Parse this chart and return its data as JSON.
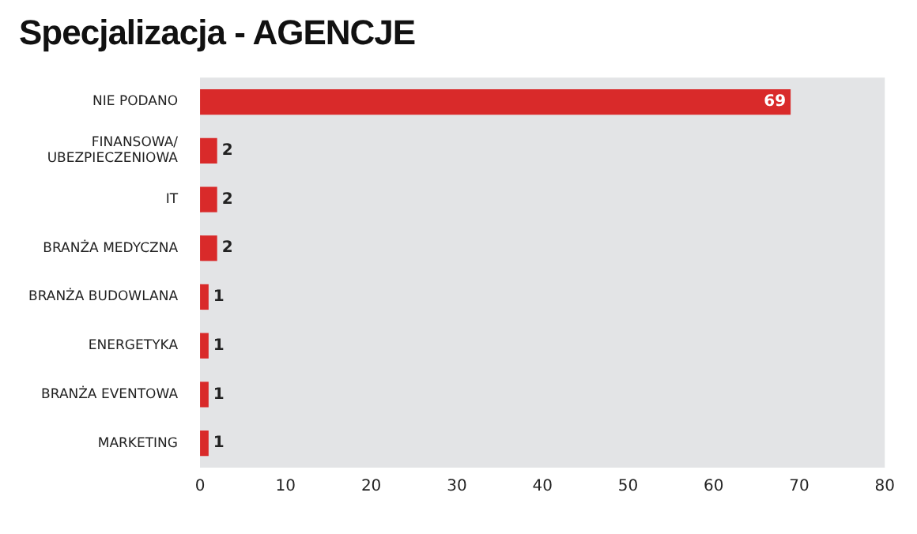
{
  "chart_data": {
    "type": "bar",
    "orientation": "horizontal",
    "title": "Specjalizacja - AGENCJE",
    "categories": [
      "NIE PODANO",
      "FINANSOWA/UBEZPIECZENIOWA",
      "IT",
      "BRANŻA MEDYCZNA",
      "BRANŻA BUDOWLANA",
      "ENERGETYKA",
      "BRANŻA EVENTOWA",
      "MARKETING"
    ],
    "values": [
      69,
      2,
      2,
      2,
      1,
      1,
      1,
      1
    ],
    "color": "#d92a2a",
    "xlim": [
      0,
      80
    ],
    "xticks": [
      0,
      10,
      20,
      30,
      40,
      50,
      60,
      70,
      80
    ],
    "grid": false,
    "data_labels": true
  }
}
